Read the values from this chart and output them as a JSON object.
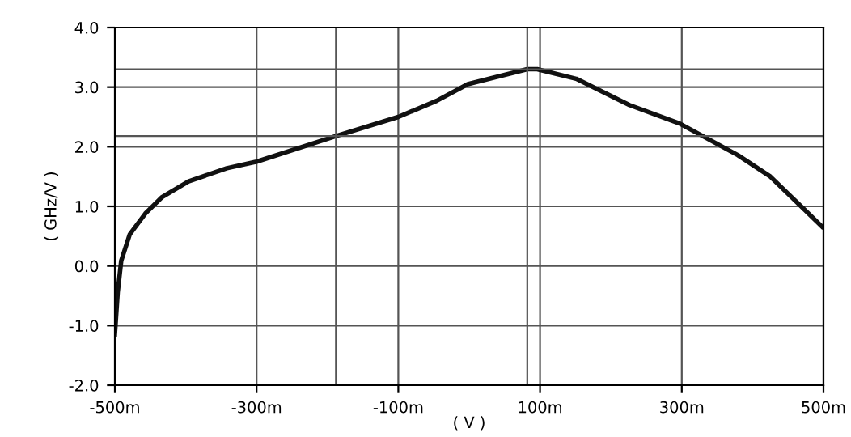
{
  "chart_data": {
    "type": "line",
    "xlabel": "( V )",
    "ylabel": "( GHz/V )",
    "x": [
      -500,
      -496,
      -491,
      -479,
      -457,
      -434,
      -396,
      -342,
      -300,
      -188,
      -100,
      -46,
      -2,
      82,
      96,
      151,
      226,
      297,
      379,
      425,
      498
    ],
    "series": [
      {
        "color": "#111111",
        "values": [
          -1.15,
          -0.44,
          0.09,
          0.53,
          0.88,
          1.15,
          1.42,
          1.64,
          1.75,
          2.18,
          2.5,
          2.77,
          3.05,
          3.3,
          3.3,
          3.14,
          2.7,
          2.39,
          1.86,
          1.5,
          0.66
        ]
      }
    ],
    "xlim": [
      -500,
      500
    ],
    "xticks": [
      {
        "value": -500,
        "label": "-500m"
      },
      {
        "value": -300,
        "label": "-300m"
      },
      {
        "value": -100,
        "label": "-100m"
      },
      {
        "value": 100,
        "label": "100m"
      },
      {
        "value": 300,
        "label": "300m"
      },
      {
        "value": 500,
        "label": "500m"
      }
    ],
    "ylim": [
      -2.0,
      4.0
    ],
    "yticks": [
      {
        "value": -2.0,
        "label": "-2.0"
      },
      {
        "value": -1.0,
        "label": "-1.0"
      },
      {
        "value": 0.0,
        "label": "0.0"
      },
      {
        "value": 1.0,
        "label": "1.0"
      },
      {
        "value": 2.0,
        "label": "2.0"
      },
      {
        "value": 3.0,
        "label": "3.0"
      },
      {
        "value": 4.0,
        "label": "4.0"
      }
    ],
    "ref_lines": [
      {
        "axis": "x",
        "value": -188,
        "label": null
      },
      {
        "axis": "x",
        "value": 82,
        "label": null
      },
      {
        "axis": "y",
        "value": 2.18,
        "label": null
      },
      {
        "axis": "y",
        "value": 3.3,
        "label": null
      }
    ],
    "grid": true,
    "marker": "none",
    "line_style": "solid"
  }
}
